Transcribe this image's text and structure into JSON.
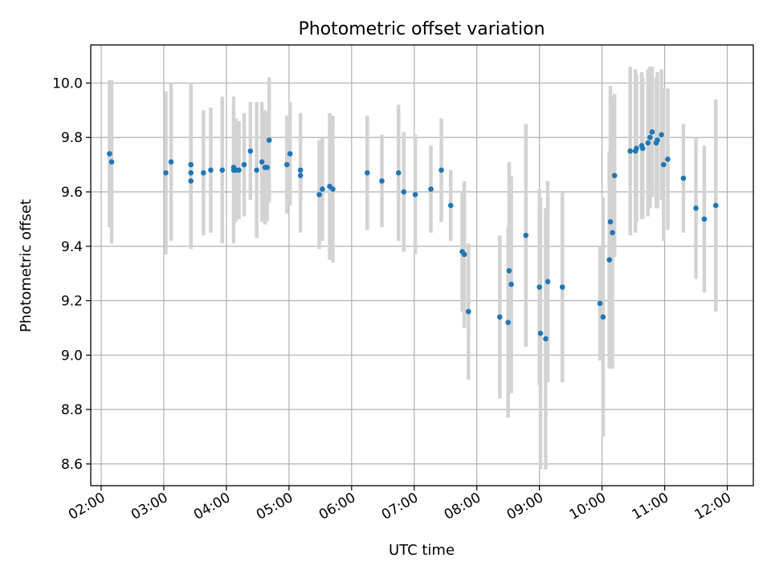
{
  "chart_data": {
    "type": "scatter",
    "title": "Photometric offset variation",
    "xlabel": "UTC time",
    "ylabel": "Photometric offset",
    "xlim": [
      "01:50",
      "12:25"
    ],
    "ylim": [
      8.52,
      10.14
    ],
    "xticks": [
      "02:00",
      "03:00",
      "04:00",
      "05:00",
      "06:00",
      "07:00",
      "08:00",
      "09:00",
      "10:00",
      "11:00",
      "12:00"
    ],
    "yticks": [
      "8.6",
      "8.8",
      "9.0",
      "9.2",
      "9.4",
      "9.6",
      "9.8",
      "10.0"
    ],
    "grid": true,
    "colors": {
      "point": "#1f77b4",
      "error_bar": "#d3d3d3"
    },
    "series": [
      {
        "x_time": [
          "02:08",
          "02:10",
          "03:02",
          "03:07",
          "03:26",
          "03:26",
          "03:26",
          "03:38",
          "03:45",
          "03:56",
          "04:07",
          "04:07",
          "04:09",
          "04:12",
          "04:17",
          "04:23",
          "04:29",
          "04:34",
          "04:37",
          "04:39",
          "04:41",
          "04:58",
          "05:01",
          "05:11",
          "05:11",
          "05:29",
          "05:32",
          "05:39",
          "05:42",
          "06:15",
          "06:29",
          "06:45",
          "06:50",
          "07:01",
          "07:16",
          "07:26",
          "07:35",
          "07:46",
          "07:48",
          "07:52",
          "08:22",
          "08:30",
          "08:31",
          "08:33",
          "08:47",
          "09:00",
          "09:01",
          "09:06",
          "09:08",
          "09:22",
          "09:58",
          "10:01",
          "10:07",
          "10:08",
          "10:10",
          "10:12",
          "10:27",
          "10:32",
          "10:33",
          "10:38",
          "10:39",
          "10:44",
          "10:46",
          "10:48",
          "10:52",
          "10:53",
          "10:57",
          "10:59",
          "11:03",
          "11:18",
          "11:30",
          "11:38",
          "11:49"
        ],
        "y": [
          9.74,
          9.71,
          9.67,
          9.71,
          9.64,
          9.67,
          9.7,
          9.67,
          9.68,
          9.68,
          9.68,
          9.69,
          9.68,
          9.68,
          9.7,
          9.75,
          9.68,
          9.71,
          9.69,
          9.69,
          9.79,
          9.7,
          9.74,
          9.66,
          9.68,
          9.59,
          9.61,
          9.62,
          9.61,
          9.67,
          9.64,
          9.67,
          9.6,
          9.59,
          9.61,
          9.68,
          9.55,
          9.38,
          9.37,
          9.16,
          9.14,
          9.12,
          9.31,
          9.26,
          9.44,
          9.25,
          9.08,
          9.06,
          9.27,
          9.25,
          9.19,
          9.14,
          9.35,
          9.49,
          9.45,
          9.66,
          9.75,
          9.75,
          9.76,
          9.77,
          9.76,
          9.78,
          9.8,
          9.82,
          9.78,
          9.79,
          9.81,
          9.7,
          9.72,
          9.65,
          9.54,
          9.5,
          9.55
        ],
        "y_error": [
          0.27,
          0.3,
          0.3,
          0.29,
          0.25,
          0.25,
          0.3,
          0.23,
          0.23,
          0.27,
          0.27,
          0.18,
          0.19,
          0.18,
          0.19,
          0.18,
          0.25,
          0.22,
          0.21,
          0.2,
          0.23,
          0.18,
          0.19,
          0.21,
          0.21,
          0.2,
          0.19,
          0.27,
          0.27,
          0.21,
          0.17,
          0.25,
          0.22,
          0.22,
          0.16,
          0.19,
          0.13,
          0.22,
          0.27,
          0.25,
          0.3,
          0.35,
          0.4,
          0.4,
          0.41,
          0.36,
          0.5,
          0.48,
          0.37,
          0.35,
          0.21,
          0.44,
          0.4,
          0.5,
          0.5,
          0.3,
          0.31,
          0.3,
          0.27,
          0.27,
          0.26,
          0.27,
          0.26,
          0.24,
          0.24,
          0.25,
          0.24,
          0.28,
          0.26,
          0.2,
          0.26,
          0.27,
          0.39
        ]
      }
    ]
  }
}
